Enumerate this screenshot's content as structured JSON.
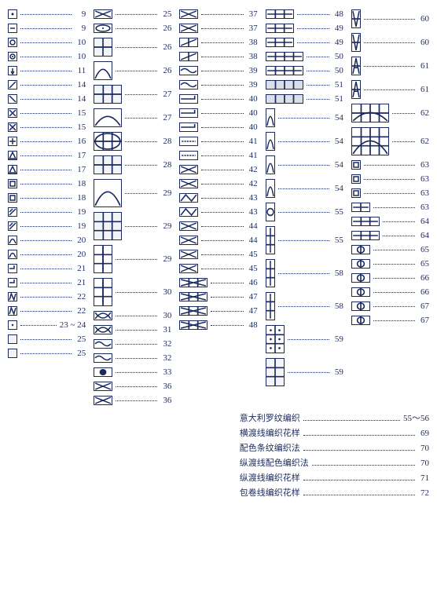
{
  "colors": {
    "ink": "#1a2a5e",
    "bg": "#ffffff"
  },
  "symbolUnit": 12,
  "columns": [
    [
      {
        "w": 1,
        "h": 1,
        "num": "9",
        "icon": "dot"
      },
      {
        "w": 1,
        "h": 1,
        "num": "9",
        "icon": "hline"
      },
      {
        "w": 1,
        "h": 1,
        "num": "10",
        "icon": "circle"
      },
      {
        "w": 1,
        "h": 1,
        "num": "10",
        "icon": "cdot"
      },
      {
        "w": 1,
        "h": 1,
        "num": "11",
        "icon": "downarrow"
      },
      {
        "w": 1,
        "h": 1,
        "num": "14",
        "icon": "diag1"
      },
      {
        "w": 1,
        "h": 1,
        "num": "14",
        "icon": "diag2"
      },
      {
        "w": 1,
        "h": 1,
        "num": "15",
        "icon": "x"
      },
      {
        "w": 1,
        "h": 1,
        "num": "15",
        "icon": "xfill"
      },
      {
        "w": 1,
        "h": 1,
        "num": "16",
        "icon": "cross"
      },
      {
        "w": 1,
        "h": 1,
        "num": "17",
        "icon": "tri"
      },
      {
        "w": 1,
        "h": 1,
        "num": "17",
        "icon": "tri2"
      },
      {
        "w": 1,
        "h": 1,
        "num": "18",
        "icon": "box"
      },
      {
        "w": 1,
        "h": 1,
        "num": "18",
        "icon": "boxd"
      },
      {
        "w": 1,
        "h": 1,
        "num": "19",
        "icon": "slash"
      },
      {
        "w": 1,
        "h": 1,
        "num": "19",
        "icon": "slash2"
      },
      {
        "w": 1,
        "h": 1,
        "num": "20",
        "icon": "arc"
      },
      {
        "w": 1,
        "h": 1,
        "num": "20",
        "icon": "arc2"
      },
      {
        "w": 1,
        "h": 1,
        "num": "21",
        "icon": "hook"
      },
      {
        "w": 1,
        "h": 1,
        "num": "21",
        "icon": "hook2"
      },
      {
        "w": 1,
        "h": 1,
        "num": "22",
        "icon": "zig"
      },
      {
        "w": 1,
        "h": 1,
        "num": "22",
        "icon": "zig2"
      },
      {
        "w": 1,
        "h": 1,
        "num": "23 ~ 24",
        "icon": "dots"
      },
      {
        "w": 1,
        "h": 1,
        "num": "25",
        "icon": "grid1"
      },
      {
        "w": 1,
        "h": 1,
        "num": "25",
        "icon": "grid1b"
      }
    ],
    [
      {
        "w": 2,
        "h": 1,
        "num": "25",
        "icon": "xx"
      },
      {
        "w": 2,
        "h": 1,
        "num": "26",
        "icon": "eye"
      },
      {
        "w": 2,
        "h": 2,
        "num": "26",
        "icon": "grid2"
      },
      {
        "w": 2,
        "h": 2,
        "num": "26",
        "icon": "arch"
      },
      {
        "w": 3,
        "h": 2,
        "num": "27",
        "icon": "grid3"
      },
      {
        "w": 3,
        "h": 2,
        "num": "27",
        "icon": "arch3"
      },
      {
        "w": 3,
        "h": 2,
        "num": "28",
        "icon": "oval"
      },
      {
        "w": 3,
        "h": 2,
        "num": "28",
        "icon": "grid3b"
      },
      {
        "w": 3,
        "h": 3,
        "num": "29",
        "icon": "arch4"
      },
      {
        "w": 3,
        "h": 3,
        "num": "29",
        "icon": "grid4"
      },
      {
        "w": 2,
        "h": 3,
        "num": "29",
        "icon": "tall"
      },
      {
        "w": 2,
        "h": 3,
        "num": "30",
        "icon": "tall2"
      },
      {
        "w": 2,
        "h": 1,
        "num": "30",
        "icon": "twist"
      },
      {
        "w": 2,
        "h": 1,
        "num": "31",
        "icon": "twist2"
      },
      {
        "w": 2,
        "h": 1,
        "num": "32",
        "icon": "curl"
      },
      {
        "w": 2,
        "h": 1,
        "num": "32",
        "icon": "curl2"
      },
      {
        "w": 2,
        "h": 1,
        "num": "33",
        "icon": "spot"
      },
      {
        "w": 2,
        "h": 1,
        "num": "36",
        "icon": "xx2"
      },
      {
        "w": 2,
        "h": 1,
        "num": "36",
        "icon": "xx3"
      }
    ],
    [
      {
        "w": 2,
        "h": 1,
        "num": "37",
        "icon": "x2"
      },
      {
        "w": 2,
        "h": 1,
        "num": "37",
        "icon": "x2b"
      },
      {
        "w": 2,
        "h": 1,
        "num": "38",
        "icon": "sl"
      },
      {
        "w": 2,
        "h": 1,
        "num": "38",
        "icon": "sl2"
      },
      {
        "w": 2,
        "h": 1,
        "num": "39",
        "icon": "wave"
      },
      {
        "w": 2,
        "h": 1,
        "num": "39",
        "icon": "wave2"
      },
      {
        "w": 2,
        "h": 1,
        "num": "40",
        "icon": "hook3"
      },
      {
        "w": 2,
        "h": 1,
        "num": "40",
        "icon": "hook4"
      },
      {
        "w": 2,
        "h": 1,
        "num": "40",
        "icon": "hook5"
      },
      {
        "w": 2,
        "h": 1,
        "num": "41",
        "icon": "dash"
      },
      {
        "w": 2,
        "h": 1,
        "num": "41",
        "icon": "dash2"
      },
      {
        "w": 2,
        "h": 1,
        "num": "42",
        "icon": "xx4"
      },
      {
        "w": 2,
        "h": 1,
        "num": "42",
        "icon": "xx5"
      },
      {
        "w": 2,
        "h": 1,
        "num": "43",
        "icon": "zig3"
      },
      {
        "w": 2,
        "h": 1,
        "num": "43",
        "icon": "zig4"
      },
      {
        "w": 2,
        "h": 1,
        "num": "44",
        "icon": "x3"
      },
      {
        "w": 2,
        "h": 1,
        "num": "44",
        "icon": "x4"
      },
      {
        "w": 2,
        "h": 1,
        "num": "45",
        "icon": "xx6"
      },
      {
        "w": 2,
        "h": 1,
        "num": "45",
        "icon": "xx7"
      },
      {
        "w": 3,
        "h": 1,
        "num": "46",
        "icon": "long"
      },
      {
        "w": 3,
        "h": 1,
        "num": "47",
        "icon": "long2"
      },
      {
        "w": 3,
        "h": 1,
        "num": "47",
        "icon": "long3"
      },
      {
        "w": 3,
        "h": 1,
        "num": "48",
        "icon": "long4"
      }
    ],
    [
      {
        "w": 3,
        "h": 1,
        "num": "48",
        "icon": "bar"
      },
      {
        "w": 3,
        "h": 1,
        "num": "49",
        "icon": "bar2"
      },
      {
        "w": 3,
        "h": 1,
        "num": "49",
        "icon": "bar3"
      },
      {
        "w": 4,
        "h": 1,
        "num": "50",
        "icon": "bar4"
      },
      {
        "w": 4,
        "h": 1,
        "num": "50",
        "icon": "bar5"
      },
      {
        "w": 4,
        "h": 1,
        "num": "51",
        "icon": "hatch"
      },
      {
        "w": 4,
        "h": 1,
        "num": "51",
        "icon": "hatch2"
      },
      {
        "w": 1,
        "h": 2,
        "num": "54",
        "icon": "arch5"
      },
      {
        "w": 1,
        "h": 2,
        "num": "54",
        "icon": "arch6"
      },
      {
        "w": 1,
        "h": 2,
        "num": "54",
        "icon": "arch7"
      },
      {
        "w": 1,
        "h": 2,
        "num": "54",
        "icon": "arch8"
      },
      {
        "w": 1,
        "h": 2,
        "num": "55",
        "icon": "ring"
      },
      {
        "w": 1,
        "h": 3,
        "num": "55",
        "icon": "tall3"
      },
      {
        "w": 1,
        "h": 3,
        "num": "58",
        "icon": "tall4"
      },
      {
        "w": 1,
        "h": 3,
        "num": "58",
        "icon": "tall5"
      },
      {
        "w": 2,
        "h": 3,
        "num": "59",
        "icon": "dots2"
      },
      {
        "w": 2,
        "h": 3,
        "num": "59",
        "icon": "grid5"
      }
    ],
    [
      {
        "w": 1,
        "h": 2,
        "num": "60",
        "icon": "v1"
      },
      {
        "w": 1,
        "h": 2,
        "num": "60",
        "icon": "v2"
      },
      {
        "w": 1,
        "h": 2,
        "num": "61",
        "icon": "a1"
      },
      {
        "w": 1,
        "h": 2,
        "num": "61",
        "icon": "a2"
      },
      {
        "w": 4,
        "h": 2,
        "num": "62",
        "icon": "wide"
      },
      {
        "w": 4,
        "h": 3,
        "num": "62",
        "icon": "wide2"
      },
      {
        "w": 1,
        "h": 1,
        "num": "63",
        "icon": "sq"
      },
      {
        "w": 1,
        "h": 1,
        "num": "63",
        "icon": "sq2"
      },
      {
        "w": 1,
        "h": 1,
        "num": "63",
        "icon": "sq3"
      },
      {
        "w": 2,
        "h": 1,
        "num": "63",
        "icon": "bar6"
      },
      {
        "w": 3,
        "h": 1,
        "num": "64",
        "icon": "bar7"
      },
      {
        "w": 3,
        "h": 1,
        "num": "64",
        "icon": "bar8"
      },
      {
        "w": 2,
        "h": 1,
        "num": "65",
        "icon": "pill"
      },
      {
        "w": 2,
        "h": 1,
        "num": "65",
        "icon": "pill2"
      },
      {
        "w": 2,
        "h": 1,
        "num": "66",
        "icon": "pill3"
      },
      {
        "w": 2,
        "h": 1,
        "num": "66",
        "icon": "pill4"
      },
      {
        "w": 2,
        "h": 1,
        "num": "67",
        "icon": "pill5"
      },
      {
        "w": 2,
        "h": 1,
        "num": "67",
        "icon": "pill6"
      }
    ]
  ],
  "textEntries": [
    {
      "label": "意大利罗纹编织",
      "num": "55～56"
    },
    {
      "label": "横渡线编织花样",
      "num": "69"
    },
    {
      "label": "配色条纹编织法",
      "num": "70"
    },
    {
      "label": "纵渡线配色编织法",
      "num": "70"
    },
    {
      "label": "纵渡线编织花样",
      "num": "71"
    },
    {
      "label": "包卷线编织花样",
      "num": "72"
    }
  ]
}
